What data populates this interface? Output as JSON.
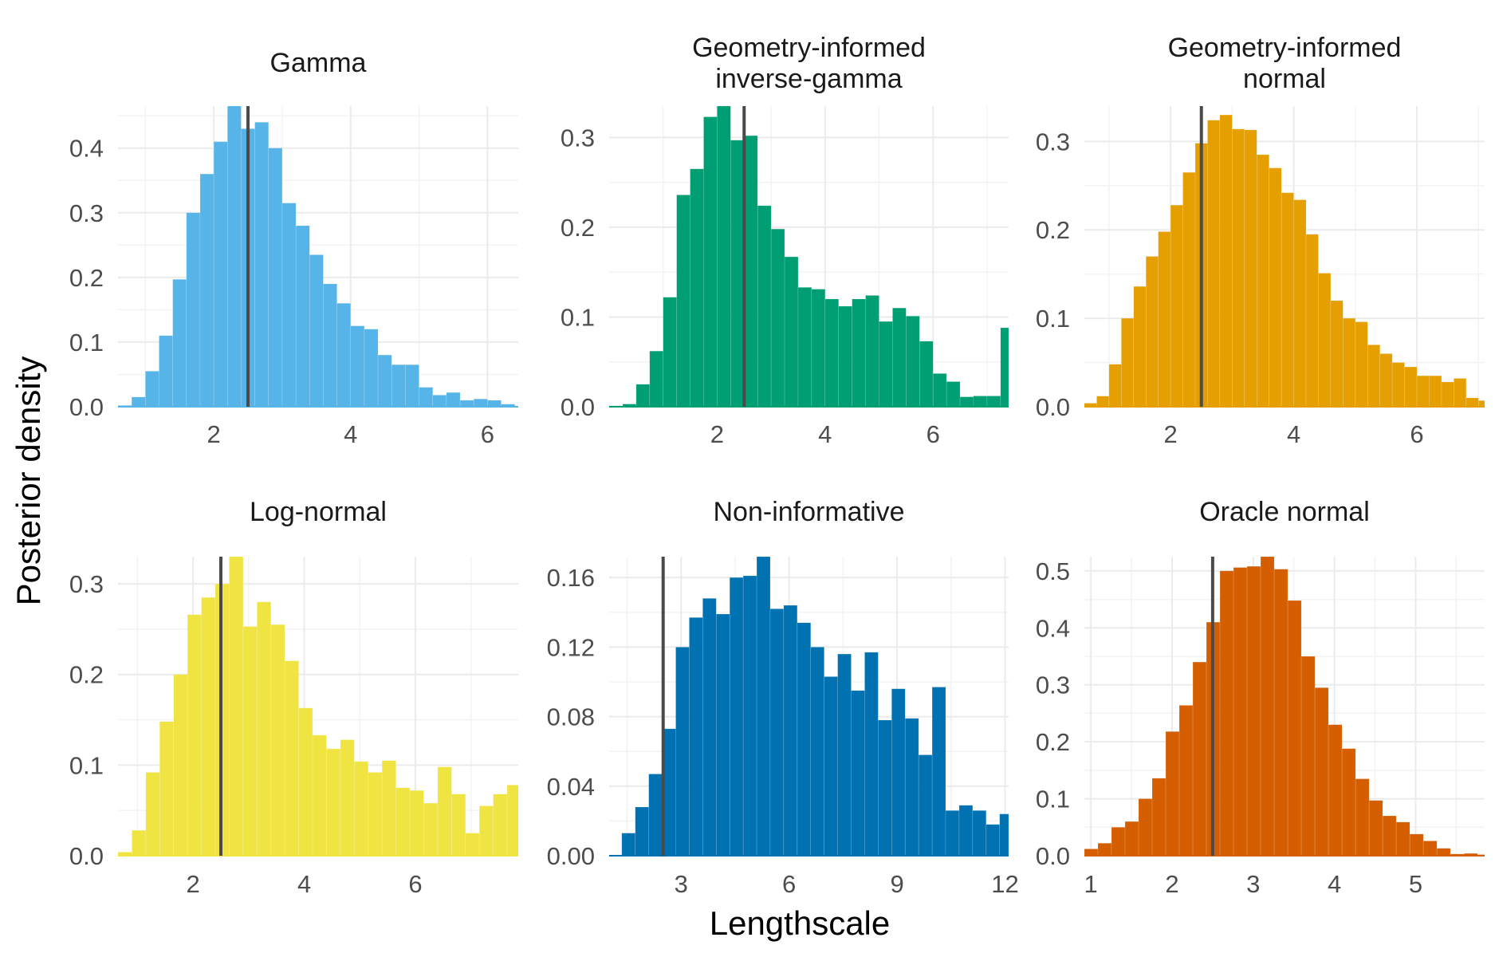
{
  "ylabel": "Posterior density",
  "xlabel": "Lengthscale",
  "reference_lengthscale": 2.5,
  "chart_data": [
    {
      "type": "bar",
      "title": "Gamma",
      "title_lines": [
        "Gamma"
      ],
      "color": "#56B4E9",
      "xlim": [
        0.6,
        6.45
      ],
      "ylim": [
        0,
        0.465
      ],
      "xticks": [
        2,
        4,
        6
      ],
      "xtick_labels": [
        "2",
        "4",
        "6"
      ],
      "yticks": [
        0,
        0.1,
        0.2,
        0.3,
        0.4
      ],
      "ytick_labels": [
        "0.0",
        "0.1",
        "0.2",
        "0.3",
        "0.4"
      ],
      "bin_start": 0.6,
      "bin_width": 0.2,
      "values": [
        0.002,
        0.015,
        0.055,
        0.11,
        0.197,
        0.3,
        0.36,
        0.41,
        0.465,
        0.43,
        0.44,
        0.4,
        0.315,
        0.28,
        0.235,
        0.19,
        0.16,
        0.125,
        0.12,
        0.08,
        0.065,
        0.065,
        0.03,
        0.018,
        0.022,
        0.01,
        0.012,
        0.01,
        0.004
      ],
      "reference_x": 2.5
    },
    {
      "type": "bar",
      "title": "Geometry-informed inverse-gamma",
      "title_lines": [
        "Geometry-informed",
        "inverse-gamma"
      ],
      "color": "#009E73",
      "xlim": [
        0.0,
        7.4
      ],
      "ylim": [
        0,
        0.335
      ],
      "xticks": [
        2,
        4,
        6
      ],
      "xtick_labels": [
        "2",
        "4",
        "6"
      ],
      "yticks": [
        0,
        0.1,
        0.2,
        0.3
      ],
      "ytick_labels": [
        "0.0",
        "0.1",
        "0.2",
        "0.3"
      ],
      "bin_start": 0.0,
      "bin_width": 0.25,
      "values": [
        0.001,
        0.003,
        0.025,
        0.062,
        0.122,
        0.236,
        0.265,
        0.323,
        0.335,
        0.297,
        0.302,
        0.224,
        0.198,
        0.167,
        0.133,
        0.131,
        0.12,
        0.112,
        0.12,
        0.124,
        0.095,
        0.11,
        0.101,
        0.073,
        0.037,
        0.028,
        0.011,
        0.012,
        0.012,
        0.088
      ],
      "reference_x": 2.5
    },
    {
      "type": "bar",
      "title": "Geometry-informed normal",
      "title_lines": [
        "Geometry-informed",
        "normal"
      ],
      "color": "#E69F00",
      "xlim": [
        0.6,
        7.1
      ],
      "ylim": [
        0,
        0.34
      ],
      "xticks": [
        2,
        4,
        6
      ],
      "xtick_labels": [
        "2",
        "4",
        "6"
      ],
      "yticks": [
        0,
        0.1,
        0.2,
        0.3
      ],
      "ytick_labels": [
        "0.0",
        "0.1",
        "0.2",
        "0.3"
      ],
      "bin_start": 0.6,
      "bin_width": 0.2,
      "values": [
        0.004,
        0.012,
        0.048,
        0.1,
        0.136,
        0.17,
        0.198,
        0.228,
        0.265,
        0.298,
        0.324,
        0.33,
        0.314,
        0.313,
        0.285,
        0.27,
        0.242,
        0.234,
        0.195,
        0.151,
        0.12,
        0.1,
        0.096,
        0.07,
        0.06,
        0.05,
        0.045,
        0.035,
        0.035,
        0.028,
        0.032,
        0.01,
        0.007
      ],
      "reference_x": 2.5
    },
    {
      "type": "bar",
      "title": "Log-normal",
      "title_lines": [
        "Log-normal"
      ],
      "color": "#F0E442",
      "xlim": [
        0.65,
        7.85
      ],
      "ylim": [
        0,
        0.33
      ],
      "xticks": [
        2,
        4,
        6
      ],
      "xtick_labels": [
        "2",
        "4",
        "6"
      ],
      "yticks": [
        0,
        0.1,
        0.2,
        0.3
      ],
      "ytick_labels": [
        "0.0",
        "0.1",
        "0.2",
        "0.3"
      ],
      "bin_start": 0.65,
      "bin_width": 0.25,
      "values": [
        0.004,
        0.028,
        0.092,
        0.148,
        0.2,
        0.266,
        0.285,
        0.3,
        0.33,
        0.253,
        0.28,
        0.255,
        0.215,
        0.163,
        0.133,
        0.118,
        0.128,
        0.104,
        0.092,
        0.105,
        0.075,
        0.072,
        0.058,
        0.098,
        0.068,
        0.025,
        0.055,
        0.068,
        0.078,
        0.113
      ],
      "reference_x": 2.5
    },
    {
      "type": "bar",
      "title": "Non-informative",
      "title_lines": [
        "Non-informative"
      ],
      "color": "#0072B2",
      "xlim": [
        1.0,
        12.1
      ],
      "ylim": [
        0,
        0.172
      ],
      "xticks": [
        3,
        6,
        9,
        12
      ],
      "xtick_labels": [
        "3",
        "6",
        "9",
        "12"
      ],
      "yticks": [
        0,
        0.04,
        0.08,
        0.12,
        0.16
      ],
      "ytick_labels": [
        "0.00",
        "0.04",
        "0.08",
        "0.12",
        "0.16"
      ],
      "bin_start": 1.35,
      "bin_width": 0.375,
      "values": [
        0.013,
        0.028,
        0.047,
        0.073,
        0.12,
        0.137,
        0.148,
        0.139,
        0.16,
        0.161,
        0.173,
        0.142,
        0.144,
        0.134,
        0.12,
        0.103,
        0.116,
        0.095,
        0.117,
        0.078,
        0.096,
        0.079,
        0.058,
        0.097,
        0.026,
        0.029,
        0.026,
        0.018,
        0.024,
        0.008,
        0.02,
        0.004
      ],
      "reference_x": 2.5
    },
    {
      "type": "bar",
      "title": "Oracle normal",
      "title_lines": [
        "Oracle normal"
      ],
      "color": "#D55E00",
      "xlim": [
        0.92,
        5.85
      ],
      "ylim": [
        0,
        0.525
      ],
      "xticks": [
        1,
        2,
        3,
        4,
        5
      ],
      "xtick_labels": [
        "1",
        "2",
        "3",
        "4",
        "5"
      ],
      "yticks": [
        0,
        0.1,
        0.2,
        0.3,
        0.4,
        0.5
      ],
      "ytick_labels": [
        "0.0",
        "0.1",
        "0.2",
        "0.3",
        "0.4",
        "0.5"
      ],
      "bin_start": 0.92,
      "bin_width": 0.167,
      "values": [
        0.012,
        0.022,
        0.05,
        0.06,
        0.1,
        0.136,
        0.218,
        0.264,
        0.34,
        0.41,
        0.5,
        0.506,
        0.508,
        0.525,
        0.503,
        0.448,
        0.35,
        0.295,
        0.23,
        0.188,
        0.135,
        0.097,
        0.07,
        0.059,
        0.038,
        0.026,
        0.013,
        0.003,
        0.004,
        0.002
      ],
      "reference_x": 2.5
    }
  ]
}
